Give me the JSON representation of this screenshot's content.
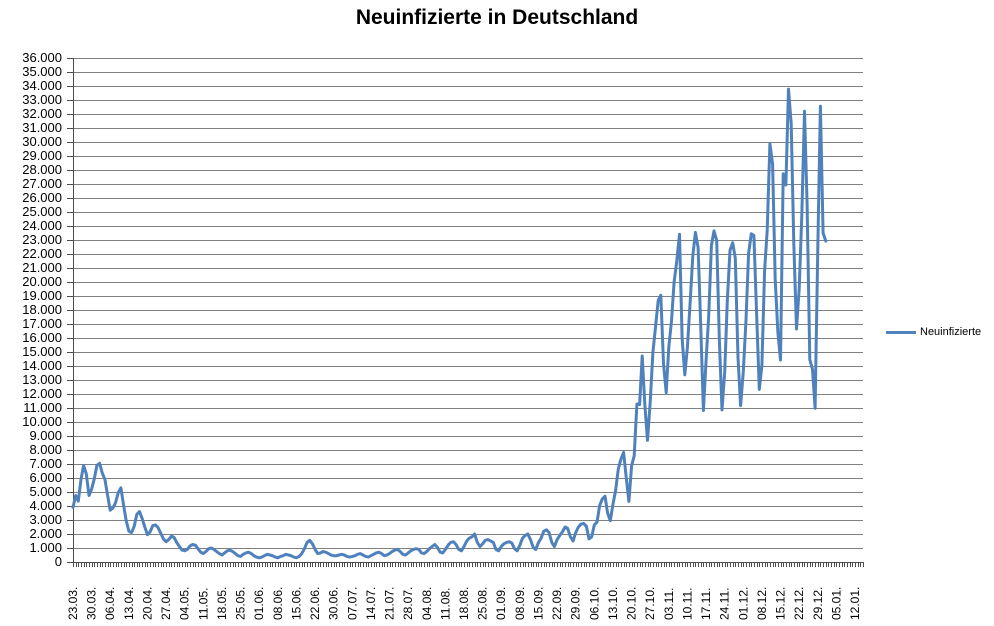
{
  "title": "Neuinfizierte in Deutschland",
  "legend": {
    "label": "Neuinfizierte"
  },
  "colors": {
    "background": "#FFFFFF",
    "line": "#4F81BD",
    "gridline": "#808080",
    "axis": "#4D4D4D",
    "label_text": "#000000"
  },
  "chart_data": {
    "type": "line",
    "title": "Neuinfizierte in Deutschland",
    "xlabel": "",
    "ylabel": "",
    "ylim": [
      0,
      36000
    ],
    "y_step": 1000,
    "grid": "horizontal",
    "legend_position": "right",
    "legend_entries": [
      "Neuinfizierte"
    ],
    "y_tick_labels": [
      "36.000",
      "35.000",
      "34.000",
      "33.000",
      "32.000",
      "31.000",
      "30.000",
      "29.000",
      "28.000",
      "27.000",
      "26.000",
      "25.000",
      "24.000",
      "23.000",
      "22.000",
      "21.000",
      "20.000",
      "19.000",
      "18.000",
      "17.000",
      "16.000",
      "15.000",
      "14.000",
      "13.000",
      "12.000",
      "11.000",
      "10.000",
      "9.000",
      "8.000",
      "7.000",
      "6.000",
      "5.000",
      "4.000",
      "3.000",
      "2.000",
      "1.000",
      "0"
    ],
    "x_tick_labels": [
      "23.03.",
      "30.03.",
      "06.04.",
      "13.04.",
      "20.04.",
      "27.04.",
      "04.05.",
      "11.05.",
      "18.05.",
      "25.05.",
      "01.06.",
      "08.06.",
      "15.06.",
      "22.06.",
      "30.06.",
      "07.07.",
      "14.07.",
      "21.07.",
      "28.07.",
      "04.08.",
      "11.08.",
      "18.08.",
      "25.08.",
      "01.09.",
      "08.09.",
      "15.09.",
      "22.09.",
      "29.09.",
      "06.10.",
      "13.10.",
      "20.10.",
      "27.10.",
      "03.11.",
      "10.11.",
      "17.11.",
      "24.11.",
      "01.12.",
      "08.12.",
      "15.12.",
      "22.12.",
      "29.12.",
      "05.01.",
      "12.01."
    ],
    "label_every_n_points": 7,
    "total_categories": 298,
    "series": [
      {
        "name": "Neuinfizierte",
        "start_category": "23.03.",
        "values": [
          3900,
          4750,
          4350,
          5900,
          6900,
          6300,
          4750,
          5200,
          5950,
          6900,
          7050,
          6350,
          5900,
          4750,
          3700,
          3850,
          4250,
          4950,
          5300,
          4100,
          2950,
          2200,
          2100,
          2550,
          3400,
          3600,
          3100,
          2500,
          1950,
          2150,
          2600,
          2650,
          2450,
          2050,
          1650,
          1450,
          1600,
          1850,
          1750,
          1400,
          1100,
          850,
          800,
          900,
          1150,
          1250,
          1200,
          950,
          700,
          600,
          750,
          950,
          1000,
          900,
          750,
          600,
          500,
          650,
          800,
          850,
          750,
          600,
          450,
          400,
          550,
          650,
          700,
          600,
          450,
          350,
          300,
          350,
          450,
          550,
          500,
          450,
          350,
          300,
          400,
          450,
          550,
          500,
          450,
          350,
          300,
          400,
          600,
          950,
          1400,
          1550,
          1300,
          900,
          600,
          650,
          750,
          700,
          600,
          500,
          450,
          450,
          500,
          550,
          500,
          400,
          350,
          400,
          450,
          550,
          600,
          500,
          400,
          350,
          450,
          550,
          650,
          700,
          600,
          450,
          500,
          600,
          750,
          850,
          900,
          750,
          550,
          500,
          650,
          800,
          900,
          950,
          900,
          650,
          600,
          750,
          950,
          1100,
          1250,
          1050,
          700,
          650,
          900,
          1200,
          1400,
          1450,
          1250,
          900,
          800,
          1100,
          1500,
          1700,
          1800,
          2000,
          1400,
          1100,
          1300,
          1550,
          1600,
          1500,
          1400,
          900,
          800,
          1100,
          1300,
          1400,
          1450,
          1350,
          950,
          800,
          1200,
          1700,
          1900,
          2000,
          1600,
          1050,
          900,
          1400,
          1700,
          2200,
          2300,
          2100,
          1400,
          1100,
          1600,
          1900,
          2150,
          2500,
          2400,
          1800,
          1500,
          2100,
          2500,
          2700,
          2750,
          2550,
          1650,
          1800,
          2650,
          2850,
          4050,
          4500,
          4700,
          3500,
          2950,
          4150,
          5100,
          6638,
          7334,
          7830,
          5984,
          4325,
          6868,
          7595,
          11287,
          11242,
          14714,
          11176,
          8685,
          11409,
          14964,
          16774,
          18681,
          19059,
          14177,
          12097,
          15352,
          17214,
          19990,
          21506,
          23399,
          16017,
          13363,
          15332,
          18487,
          21866,
          23542,
          22461,
          16947,
          10824,
          14419,
          17561,
          22609,
          23648,
          22964,
          15741,
          10864,
          13554,
          18633,
          22268,
          22806,
          21695,
          14611,
          11169,
          13604,
          17270,
          22046,
          23449,
          23318,
          17767,
          12332,
          14054,
          20815,
          23679,
          29875,
          28438,
          20200,
          16362,
          14432,
          27728,
          26923,
          33777,
          31300,
          22771,
          16643,
          19528,
          24740,
          32195,
          25533,
          14455,
          13755,
          10976,
          22459,
          32552,
          23500,
          22924
        ]
      }
    ]
  }
}
